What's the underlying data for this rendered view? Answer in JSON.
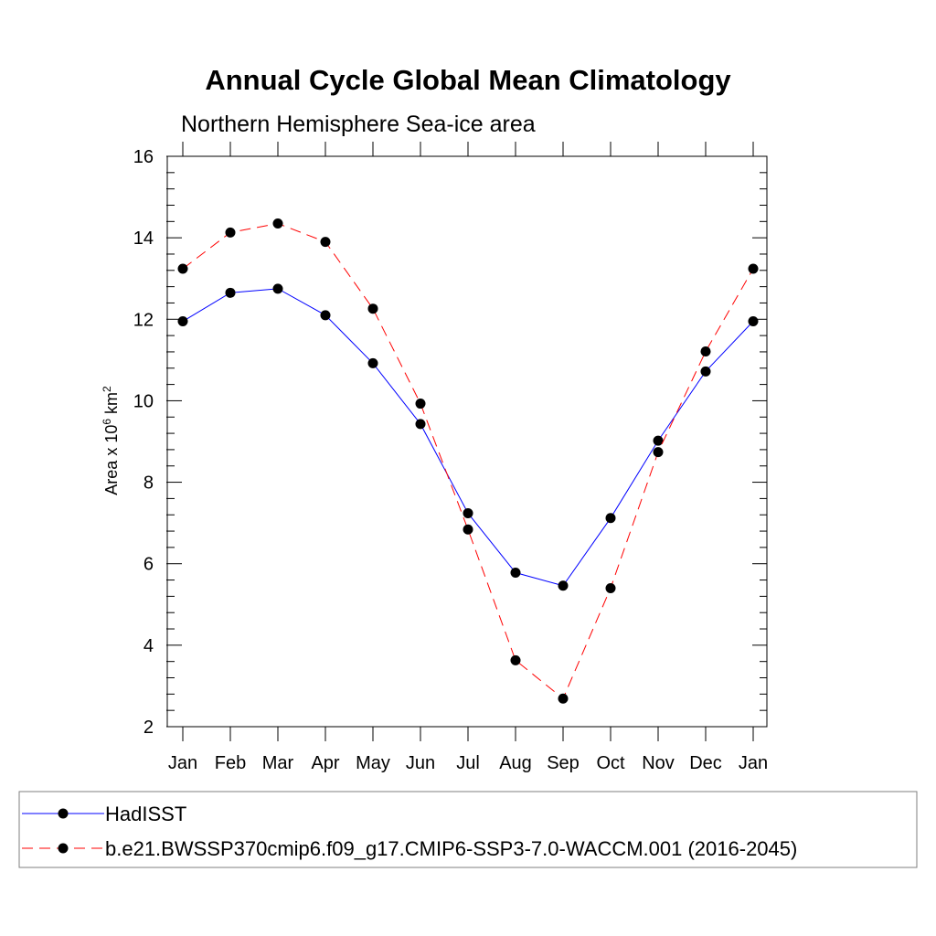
{
  "chart_data": {
    "type": "line",
    "title": "Annual Cycle Global Mean Climatology",
    "subtitle": "Northern Hemisphere Sea-ice area",
    "ylabel": {
      "base": "Area x 10",
      "exp1": "6",
      "unit": " km",
      "exp2": "2"
    },
    "xlabel": "",
    "categories": [
      "Jan",
      "Feb",
      "Mar",
      "Apr",
      "May",
      "Jun",
      "Jul",
      "Aug",
      "Sep",
      "Oct",
      "Nov",
      "Dec",
      "Jan"
    ],
    "ylim": [
      2,
      16
    ],
    "yticks": [
      2,
      4,
      6,
      8,
      10,
      12,
      14,
      16
    ],
    "grid": false,
    "legend_position": "bottom",
    "series": [
      {
        "name": "HadISST",
        "color": "#0000ff",
        "dash": "solid",
        "values": [
          11.95,
          12.65,
          12.75,
          12.1,
          10.92,
          9.43,
          7.24,
          5.78,
          5.46,
          7.12,
          9.02,
          10.72,
          11.95
        ]
      },
      {
        "name": "b.e21.BWSSP370cmip6.f09_g17.CMIP6-SSP3-7.0-WACCM.001 (2016-2045)",
        "color": "#ff0000",
        "dash": "dashed",
        "values": [
          13.24,
          14.13,
          14.35,
          13.9,
          12.26,
          9.93,
          6.84,
          3.63,
          2.69,
          5.4,
          8.74,
          11.21,
          13.24
        ]
      }
    ]
  }
}
